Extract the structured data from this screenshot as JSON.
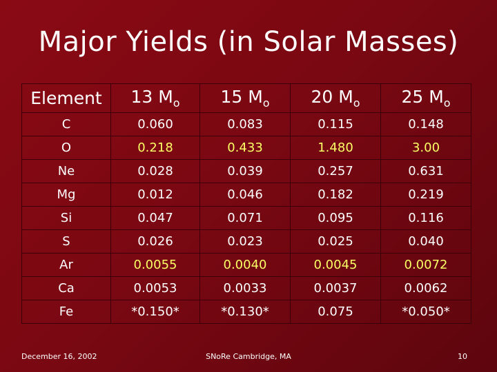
{
  "slide": {
    "title": "Major Yields (in Solar Masses)",
    "colors": {
      "background": "#7a0812",
      "text": "#ffffff",
      "highlight": "#ffff66"
    }
  },
  "table": {
    "headers": [
      {
        "main": "Element",
        "sub": ""
      },
      {
        "main": "13 M",
        "sub": "o"
      },
      {
        "main": "15 M",
        "sub": "o"
      },
      {
        "main": "20 M",
        "sub": "o"
      },
      {
        "main": "25 M",
        "sub": "o"
      }
    ],
    "rows": [
      {
        "cells": [
          "C",
          "0.060",
          "0.083",
          "0.115",
          "0.148"
        ],
        "highlight": [
          false,
          false,
          false,
          false,
          false
        ]
      },
      {
        "cells": [
          "O",
          "0.218",
          "0.433",
          "1.480",
          "3.00"
        ],
        "highlight": [
          false,
          true,
          true,
          true,
          true
        ]
      },
      {
        "cells": [
          "Ne",
          "0.028",
          "0.039",
          "0.257",
          "0.631"
        ],
        "highlight": [
          false,
          false,
          false,
          false,
          false
        ]
      },
      {
        "cells": [
          "Mg",
          "0.012",
          "0.046",
          "0.182",
          "0.219"
        ],
        "highlight": [
          false,
          false,
          false,
          false,
          false
        ]
      },
      {
        "cells": [
          "Si",
          "0.047",
          "0.071",
          "0.095",
          "0.116"
        ],
        "highlight": [
          false,
          false,
          false,
          false,
          false
        ]
      },
      {
        "cells": [
          "S",
          "0.026",
          "0.023",
          "0.025",
          "0.040"
        ],
        "highlight": [
          false,
          false,
          false,
          false,
          false
        ]
      },
      {
        "cells": [
          "Ar",
          "0.0055",
          "0.0040",
          "0.0045",
          "0.0072"
        ],
        "highlight": [
          false,
          true,
          true,
          true,
          true
        ]
      },
      {
        "cells": [
          "Ca",
          "0.0053",
          "0.0033",
          "0.0037",
          "0.0062"
        ],
        "highlight": [
          false,
          false,
          false,
          false,
          false
        ]
      },
      {
        "cells": [
          "Fe",
          "*0.150*",
          "*0.130*",
          "0.075",
          "*0.050*"
        ],
        "highlight": [
          false,
          false,
          false,
          false,
          false
        ]
      }
    ]
  },
  "footer": {
    "date": "December 16, 2002",
    "center": "SNoRe Cambridge, MA",
    "page": "10"
  }
}
